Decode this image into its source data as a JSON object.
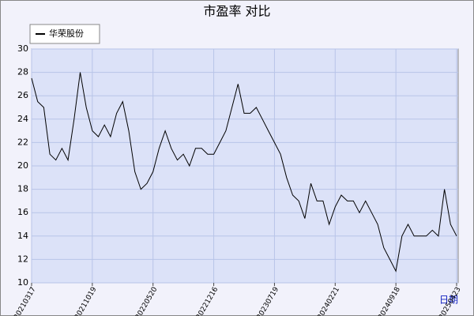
{
  "chart_data": {
    "type": "line",
    "title": "市盈率  对比",
    "x_label": "日期",
    "categories": [
      "20210317",
      null,
      null,
      null,
      null,
      null,
      null,
      null,
      null,
      null,
      "20211019",
      null,
      null,
      null,
      null,
      null,
      null,
      null,
      null,
      null,
      "20220520",
      null,
      null,
      null,
      null,
      null,
      null,
      null,
      null,
      null,
      "20221216",
      null,
      null,
      null,
      null,
      null,
      null,
      null,
      null,
      null,
      "20230719",
      null,
      null,
      null,
      null,
      null,
      null,
      null,
      null,
      null,
      "20240221",
      null,
      null,
      null,
      null,
      null,
      null,
      null,
      null,
      null,
      "20240918",
      null,
      null,
      null,
      null,
      null,
      null,
      null,
      null,
      null,
      "20250423"
    ],
    "series": [
      {
        "name": "华荣股份",
        "color": "#000000",
        "values": [
          27.5,
          25.5,
          25,
          21,
          20.5,
          21.5,
          20.5,
          24,
          28,
          25,
          23,
          22.5,
          23.5,
          22.5,
          24.5,
          25.5,
          23,
          19.5,
          18,
          18.5,
          19.5,
          21.5,
          23,
          21.5,
          20.5,
          21,
          20,
          21.5,
          21.5,
          21,
          21,
          22,
          23,
          25,
          27,
          24.5,
          24.5,
          25,
          24,
          23,
          22,
          21,
          19,
          17.5,
          17,
          15.5,
          18.5,
          17,
          17,
          15,
          16.5,
          17.5,
          17,
          17,
          16,
          17,
          16,
          15,
          13,
          12,
          11,
          14,
          15,
          14,
          14,
          14,
          14.5,
          14,
          18,
          15,
          14
        ]
      }
    ],
    "ylim": [
      10,
      30
    ],
    "yticks": [
      10,
      12,
      14,
      16,
      18,
      20,
      22,
      24,
      26,
      28,
      30
    ],
    "grid": true,
    "legend": "top-left"
  }
}
